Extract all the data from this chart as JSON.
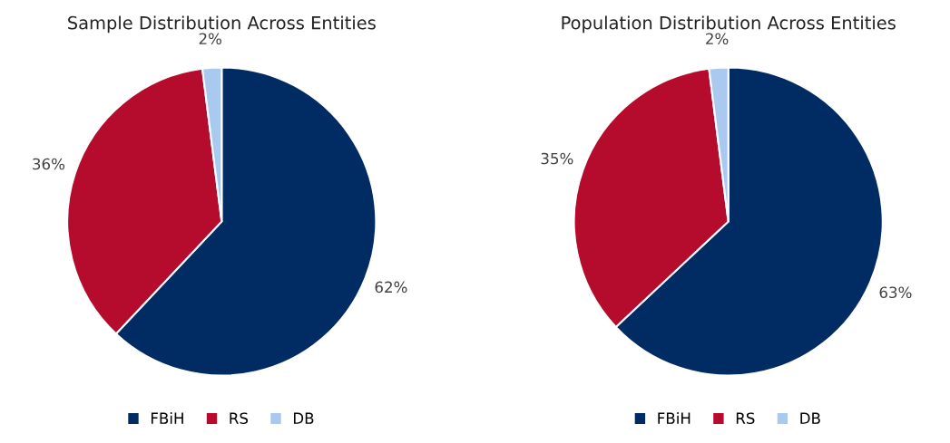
{
  "chart_data": [
    {
      "type": "pie",
      "title": "Sample Distribution Across Entities",
      "categories": [
        "FBiH",
        "RS",
        "DB"
      ],
      "values": [
        62,
        36,
        2
      ],
      "value_labels": [
        "62%",
        "36%",
        "2%"
      ],
      "colors": [
        "#002c63",
        "#b50c2d",
        "#a9c9ef"
      ],
      "legend": "bottom"
    },
    {
      "type": "pie",
      "title": "Population Distribution Across Entities",
      "categories": [
        "FBiH",
        "RS",
        "DB"
      ],
      "values": [
        63,
        35,
        2
      ],
      "value_labels": [
        "63%",
        "35%",
        "2%"
      ],
      "colors": [
        "#002c63",
        "#b50c2d",
        "#a9c9ef"
      ],
      "legend": "bottom"
    }
  ]
}
